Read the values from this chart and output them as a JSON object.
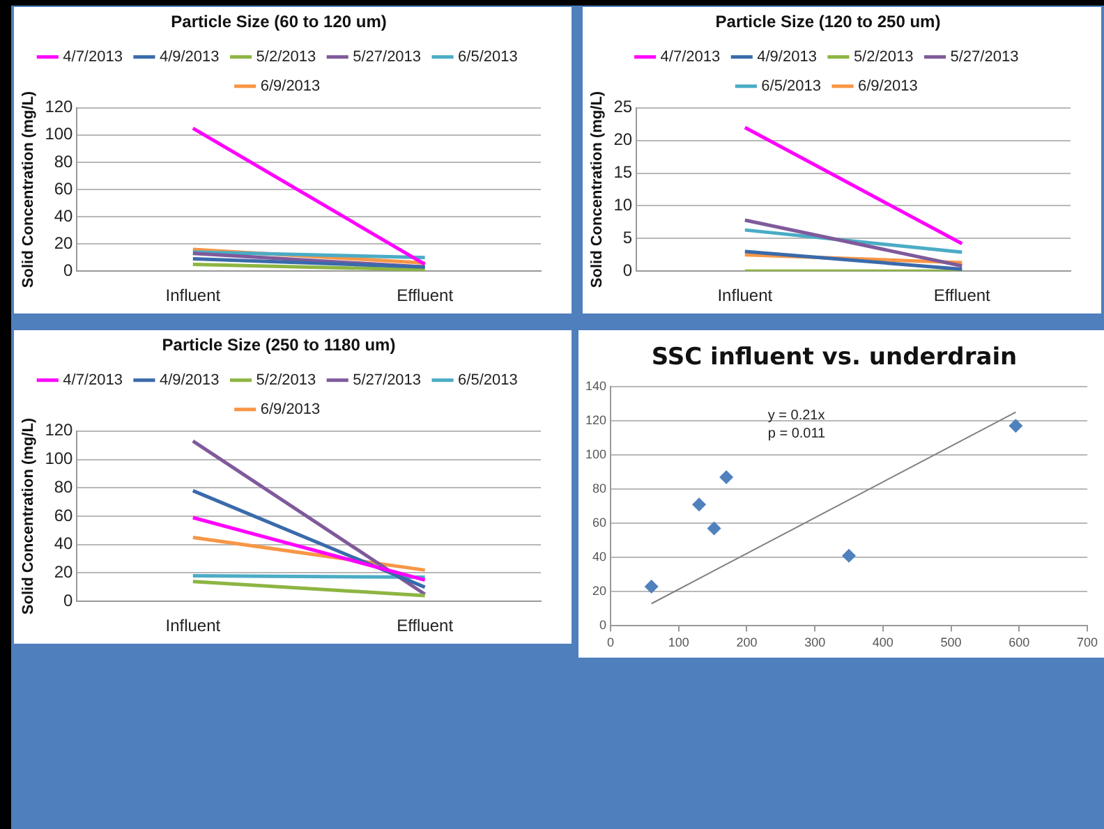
{
  "chart_data": [
    {
      "type": "line",
      "title": "Particle Size (60 to 120 um)",
      "ylabel": "Solid Concentration (mg/L)",
      "categories": [
        "Influent",
        "Effluent"
      ],
      "ylim": [
        0,
        120
      ],
      "yticks": [
        0,
        20,
        40,
        60,
        80,
        100,
        120
      ],
      "grid": "y",
      "legend": "top",
      "series": [
        {
          "name": "4/7/2013",
          "color": "#ff00ff",
          "values": [
            105,
            5
          ]
        },
        {
          "name": "4/9/2013",
          "color": "#3a6aab",
          "values": [
            9,
            3
          ]
        },
        {
          "name": "5/2/2013",
          "color": "#8db543",
          "values": [
            5,
            1
          ]
        },
        {
          "name": "5/27/2013",
          "color": "#7f5a9b",
          "values": [
            13,
            3
          ]
        },
        {
          "name": "6/5/2013",
          "color": "#4bacc6",
          "values": [
            14,
            10
          ]
        },
        {
          "name": "6/9/2013",
          "color": "#f79646",
          "values": [
            16,
            6
          ]
        }
      ]
    },
    {
      "type": "line",
      "title": "Particle Size (120 to 250 um)",
      "ylabel": "Solid Concentration (mg/L)",
      "categories": [
        "Influent",
        "Effluent"
      ],
      "ylim": [
        0,
        25
      ],
      "yticks": [
        0,
        5,
        10,
        15,
        20,
        25
      ],
      "grid": "y",
      "legend": "top",
      "series": [
        {
          "name": "4/7/2013",
          "color": "#ff00ff",
          "values": [
            22,
            4.2
          ]
        },
        {
          "name": "4/9/2013",
          "color": "#3a6aab",
          "values": [
            3,
            0.3
          ]
        },
        {
          "name": "5/2/2013",
          "color": "#8db543",
          "values": [
            0,
            0
          ]
        },
        {
          "name": "5/27/2013",
          "color": "#7f5a9b",
          "values": [
            7.8,
            0.8
          ]
        },
        {
          "name": "6/5/2013",
          "color": "#4bacc6",
          "values": [
            6.3,
            2.9
          ]
        },
        {
          "name": "6/9/2013",
          "color": "#f79646",
          "values": [
            2.5,
            1.3
          ]
        }
      ]
    },
    {
      "type": "line",
      "title": "Particle Size (250 to 1180 um)",
      "ylabel": "Solid Concentration (mg/L)",
      "categories": [
        "Influent",
        "Effluent"
      ],
      "ylim": [
        0,
        120
      ],
      "yticks": [
        0,
        20,
        40,
        60,
        80,
        100,
        120
      ],
      "grid": "y",
      "legend": "top",
      "series": [
        {
          "name": "4/7/2013",
          "color": "#ff00ff",
          "values": [
            59,
            15
          ]
        },
        {
          "name": "4/9/2013",
          "color": "#3a6aab",
          "values": [
            78,
            10
          ]
        },
        {
          "name": "5/2/2013",
          "color": "#8db543",
          "values": [
            14,
            4
          ]
        },
        {
          "name": "5/27/2013",
          "color": "#7f5a9b",
          "values": [
            113,
            5
          ]
        },
        {
          "name": "6/5/2013",
          "color": "#4bacc6",
          "values": [
            18,
            17
          ]
        },
        {
          "name": "6/9/2013",
          "color": "#f79646",
          "values": [
            45,
            22
          ]
        }
      ]
    },
    {
      "type": "scatter",
      "title": "SSC influent vs. underdrain",
      "xlim": [
        0,
        700
      ],
      "xticks": [
        0,
        100,
        200,
        300,
        400,
        500,
        600,
        700
      ],
      "ylim": [
        0,
        140
      ],
      "yticks": [
        0,
        20,
        40,
        60,
        80,
        100,
        120,
        140
      ],
      "grid": "y",
      "annotations": [
        "y = 0.21x",
        "p = 0.011"
      ],
      "series": [
        {
          "color": "#4f81bd",
          "marker": "diamond",
          "x": [
            60,
            130,
            152,
            170,
            350,
            595
          ],
          "values": [
            23,
            71,
            57,
            87,
            41,
            117
          ]
        },
        {
          "type": "line",
          "color": "#808080",
          "x": [
            60,
            595
          ],
          "values": [
            13,
            125
          ]
        }
      ]
    }
  ]
}
